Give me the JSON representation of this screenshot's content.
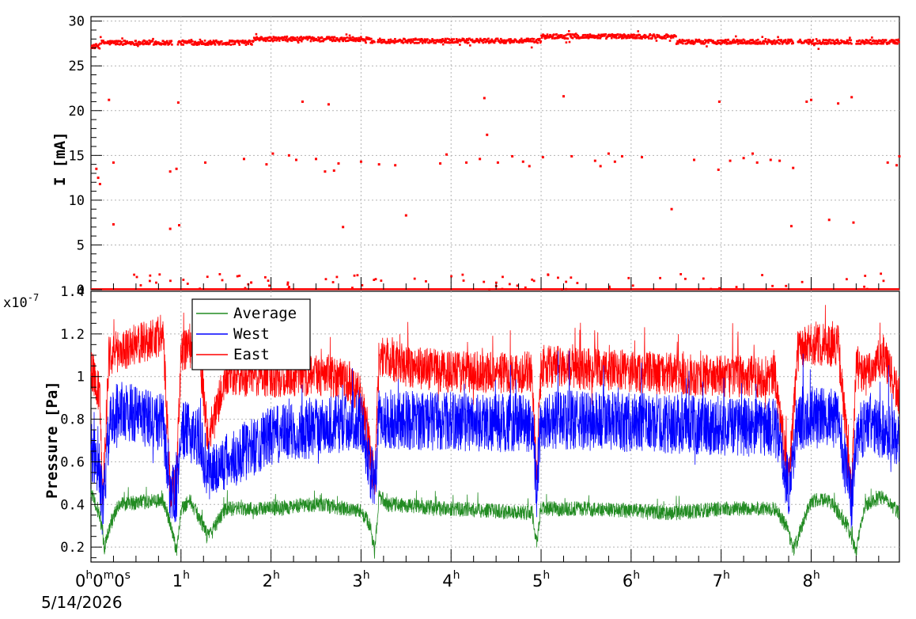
{
  "chart_data": [
    {
      "type": "scatter",
      "ylabel": "I [mA]",
      "ylim": [
        0,
        30.5
      ],
      "yticks": [
        "0",
        "5",
        "10",
        "15",
        "20",
        "25",
        "30"
      ],
      "ytick_values": [
        0,
        5,
        10,
        15,
        20,
        25,
        30
      ],
      "xlim_hours": [
        0,
        8.98
      ],
      "grid": true,
      "series": [
        {
          "color": "#ff0000",
          "baseline_levels": [
            {
              "from_h": 0.0,
              "to_h": 0.1,
              "value": 27.2
            },
            {
              "from_h": 0.1,
              "to_h": 0.85,
              "value": 27.6
            },
            {
              "from_h": 0.85,
              "to_h": 1.8,
              "value": 27.6
            },
            {
              "from_h": 1.8,
              "to_h": 3.1,
              "value": 28.0
            },
            {
              "from_h": 3.1,
              "to_h": 5.0,
              "value": 27.8
            },
            {
              "from_h": 5.0,
              "to_h": 6.5,
              "value": 28.3
            },
            {
              "from_h": 6.5,
              "to_h": 8.98,
              "value": 27.7
            }
          ],
          "gaps_hours": [
            [
              0.9,
              0.96
            ],
            [
              3.15,
              3.18
            ],
            [
              7.8,
              7.85
            ],
            [
              8.45,
              8.5
            ]
          ],
          "outliers": [
            [
              0.06,
              13.5
            ],
            [
              0.08,
              12.5
            ],
            [
              0.1,
              11.8
            ],
            [
              0.2,
              21.2
            ],
            [
              0.25,
              14.2
            ],
            [
              0.25,
              7.3
            ],
            [
              0.88,
              13.2
            ],
            [
              0.88,
              6.8
            ],
            [
              0.95,
              13.5
            ],
            [
              0.97,
              20.9
            ],
            [
              0.98,
              7.2
            ],
            [
              1.27,
              14.2
            ],
            [
              1.7,
              14.6
            ],
            [
              1.78,
              0.8
            ],
            [
              1.95,
              14.0
            ],
            [
              2.02,
              15.2
            ],
            [
              2.2,
              15.0
            ],
            [
              2.28,
              14.5
            ],
            [
              2.35,
              21.0
            ],
            [
              2.5,
              14.6
            ],
            [
              2.6,
              13.2
            ],
            [
              2.64,
              20.7
            ],
            [
              2.7,
              13.3
            ],
            [
              2.75,
              14.1
            ],
            [
              2.8,
              7.0
            ],
            [
              3.0,
              14.3
            ],
            [
              3.2,
              14.0
            ],
            [
              3.38,
              13.9
            ],
            [
              3.5,
              8.3
            ],
            [
              3.88,
              14.1
            ],
            [
              3.95,
              15.1
            ],
            [
              4.17,
              14.2
            ],
            [
              4.32,
              14.6
            ],
            [
              4.37,
              21.4
            ],
            [
              4.4,
              17.3
            ],
            [
              4.52,
              14.2
            ],
            [
              4.68,
              14.9
            ],
            [
              4.8,
              14.3
            ],
            [
              4.87,
              13.8
            ],
            [
              5.02,
              14.8
            ],
            [
              5.25,
              21.6
            ],
            [
              5.34,
              14.9
            ],
            [
              5.6,
              14.4
            ],
            [
              5.66,
              13.8
            ],
            [
              5.75,
              15.2
            ],
            [
              5.82,
              14.3
            ],
            [
              5.9,
              14.9
            ],
            [
              6.12,
              14.8
            ],
            [
              6.45,
              9.0
            ],
            [
              6.7,
              14.5
            ],
            [
              6.97,
              13.4
            ],
            [
              6.98,
              21.0
            ],
            [
              7.1,
              14.4
            ],
            [
              7.25,
              14.7
            ],
            [
              7.35,
              15.2
            ],
            [
              7.4,
              14.2
            ],
            [
              7.55,
              14.5
            ],
            [
              7.65,
              14.4
            ],
            [
              7.8,
              13.6
            ],
            [
              7.78,
              7.1
            ],
            [
              7.95,
              21.0
            ],
            [
              8.0,
              21.2
            ],
            [
              8.2,
              7.8
            ],
            [
              8.3,
              20.8
            ],
            [
              8.45,
              21.5
            ],
            [
              8.47,
              7.5
            ],
            [
              8.85,
              14.2
            ],
            [
              8.95,
              13.9
            ],
            [
              8.98,
              14.9
            ]
          ],
          "low_points_count": 80
        }
      ]
    },
    {
      "type": "line",
      "ylabel": "Pressure [Pa]",
      "yscale_label": "x10",
      "yscale_exponent": "-7",
      "ylim": [
        0.13,
        1.4
      ],
      "yticks": [
        "0.2",
        "0.4",
        "0.6",
        "0.8",
        "1",
        "1.2",
        "1.4"
      ],
      "ytick_values": [
        0.2,
        0.4,
        0.6,
        0.8,
        1.0,
        1.2,
        1.4
      ],
      "xlim_hours": [
        0,
        8.98
      ],
      "grid": true,
      "legend_position": "top-left",
      "series": [
        {
          "name": "Average",
          "color": "#228b22",
          "trend_hours": [
            0.0,
            0.1,
            0.15,
            0.2,
            0.3,
            0.8,
            0.9,
            0.95,
            1.0,
            1.1,
            1.2,
            1.3,
            1.5,
            2.0,
            2.5,
            3.0,
            3.1,
            3.15,
            3.2,
            3.3,
            4.0,
            4.9,
            4.95,
            5.0,
            5.5,
            6.0,
            6.5,
            7.0,
            7.6,
            7.75,
            7.8,
            7.9,
            8.0,
            8.2,
            8.4,
            8.5,
            8.6,
            8.8,
            8.98
          ],
          "trend_values": [
            0.45,
            0.35,
            0.2,
            0.28,
            0.4,
            0.42,
            0.28,
            0.18,
            0.38,
            0.42,
            0.34,
            0.25,
            0.38,
            0.38,
            0.4,
            0.37,
            0.3,
            0.18,
            0.44,
            0.4,
            0.38,
            0.36,
            0.22,
            0.38,
            0.38,
            0.37,
            0.36,
            0.38,
            0.38,
            0.28,
            0.18,
            0.3,
            0.42,
            0.42,
            0.3,
            0.18,
            0.4,
            0.44,
            0.36
          ],
          "noise": 0.035
        },
        {
          "name": "West",
          "color": "#0000ff",
          "trend_hours": [
            0.0,
            0.1,
            0.13,
            0.2,
            0.3,
            0.8,
            0.88,
            0.95,
            1.0,
            1.2,
            1.3,
            2.0,
            3.0,
            3.15,
            3.2,
            4.9,
            4.95,
            5.0,
            7.6,
            7.75,
            7.85,
            8.0,
            8.3,
            8.45,
            8.5,
            8.6,
            8.98
          ],
          "trend_values": [
            0.65,
            0.55,
            0.35,
            0.75,
            0.85,
            0.78,
            0.45,
            0.45,
            0.75,
            0.72,
            0.55,
            0.72,
            0.8,
            0.46,
            0.8,
            0.78,
            0.48,
            0.8,
            0.76,
            0.48,
            0.78,
            0.82,
            0.8,
            0.4,
            0.7,
            0.78,
            0.72
          ],
          "noise": 0.14
        },
        {
          "name": "East",
          "color": "#ff0000",
          "trend_hours": [
            0.0,
            0.1,
            0.13,
            0.2,
            0.5,
            0.8,
            0.88,
            0.95,
            1.0,
            1.2,
            1.3,
            1.5,
            2.0,
            2.5,
            2.8,
            3.0,
            3.15,
            3.2,
            3.5,
            4.0,
            4.9,
            4.95,
            5.0,
            6.0,
            7.0,
            7.6,
            7.75,
            7.85,
            8.0,
            8.3,
            8.45,
            8.5,
            8.6,
            8.8,
            8.98
          ],
          "trend_values": [
            1.05,
            0.9,
            0.42,
            1.1,
            1.15,
            1.2,
            0.48,
            0.5,
            1.12,
            1.15,
            0.7,
            1.0,
            1.0,
            1.0,
            1.0,
            0.92,
            0.5,
            1.1,
            1.05,
            1.02,
            1.02,
            0.5,
            1.05,
            1.02,
            1.0,
            1.0,
            0.5,
            1.12,
            1.15,
            1.15,
            0.45,
            1.05,
            1.0,
            1.1,
            0.9
          ],
          "noise": 0.1
        }
      ]
    }
  ],
  "time_axis": {
    "labels": [
      {
        "hour": 1,
        "main": "1",
        "sup": "h"
      },
      {
        "hour": 2,
        "main": "2",
        "sup": "h"
      },
      {
        "hour": 3,
        "main": "3",
        "sup": "h"
      },
      {
        "hour": 4,
        "main": "4",
        "sup": "h"
      },
      {
        "hour": 5,
        "main": "5",
        "sup": "h"
      },
      {
        "hour": 6,
        "main": "6",
        "sup": "h"
      },
      {
        "hour": 7,
        "main": "7",
        "sup": "h"
      },
      {
        "hour": 8,
        "main": "8",
        "sup": "h"
      }
    ],
    "origin_parts": [
      {
        "text": "0",
        "sup": false
      },
      {
        "text": "h",
        "sup": true
      },
      {
        "text": "0",
        "sup": false
      },
      {
        "text": "m",
        "sup": true
      },
      {
        "text": "0",
        "sup": false
      },
      {
        "text": "s",
        "sup": true
      }
    ],
    "date": "5/14/2026"
  }
}
